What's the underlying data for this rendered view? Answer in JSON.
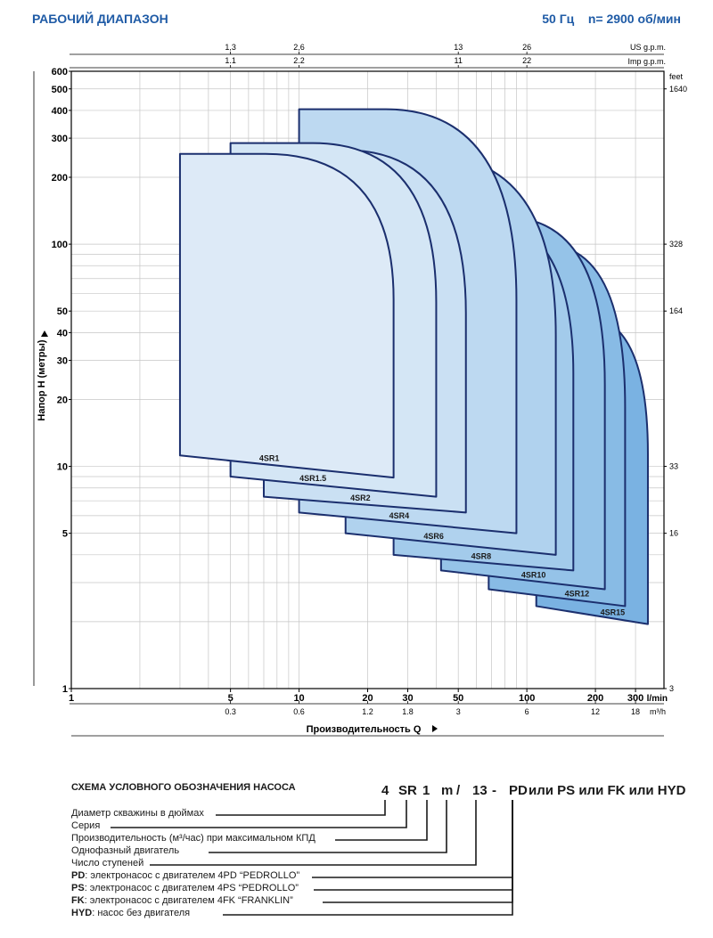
{
  "header": {
    "title": "РАБОЧИЙ ДИАПАЗОН",
    "frequency": "50 Гц",
    "speed": "n= 2900 об/мин"
  },
  "chart_data": {
    "type": "area",
    "x_scale": "log",
    "y_scale": "log",
    "xlim": [
      1,
      400
    ],
    "ylim": [
      1,
      600
    ],
    "xlabel": "Производительность Q",
    "ylabel": "Напор H (метры)",
    "x_unit": "l/min",
    "x2_unit": "m³/h",
    "x_ticks": [
      1,
      5,
      10,
      20,
      30,
      50,
      100,
      200,
      300
    ],
    "x_tick_labels": [
      "1",
      "5",
      "10",
      "20",
      "30",
      "50",
      "100",
      "200",
      "300"
    ],
    "x2_ticks": [
      5,
      10,
      20,
      30,
      50,
      100,
      200,
      300
    ],
    "x2_tick_labels": [
      "0.3",
      "0.6",
      "1.2",
      "1.8",
      "3",
      "6",
      "12",
      "18"
    ],
    "top_us_ticks": [
      5,
      10,
      50,
      100
    ],
    "top_us_labels": [
      "1,3",
      "2,6",
      "13",
      "26"
    ],
    "top_us_unit": "US g.p.m.",
    "top_imp_ticks": [
      5,
      10,
      50,
      100
    ],
    "top_imp_labels": [
      "1.1",
      "2.2",
      "11",
      "22"
    ],
    "top_imp_unit": "Imp g.p.m.",
    "y_ticks": [
      1,
      5,
      10,
      20,
      30,
      40,
      50,
      100,
      200,
      300,
      400,
      500,
      600
    ],
    "y_tick_labels": [
      "1",
      "5",
      "10",
      "20",
      "30",
      "40",
      "50",
      "100",
      "200",
      "300",
      "400",
      "500",
      "600"
    ],
    "right_ticks": [
      1,
      5,
      10,
      50,
      100,
      500
    ],
    "right_tick_labels": [
      "3",
      "16",
      "33",
      "164",
      "328",
      "1640"
    ],
    "right_unit": "feet",
    "series": [
      {
        "name": "4SR1",
        "qmin": 3,
        "qmax": 26,
        "hmax": 255,
        "hmin_l": 11.2,
        "hmin_r": 8.9,
        "color": "#ddeaf7"
      },
      {
        "name": "4SR1.5",
        "qmin": 5,
        "qmax": 40,
        "hmax": 285,
        "hmin_l": 9.0,
        "hmin_r": 7.3,
        "color": "#d4e6f5"
      },
      {
        "name": "4SR2",
        "qmin": 7,
        "qmax": 54,
        "hmax": 265,
        "hmin_l": 7.3,
        "hmin_r": 6.2,
        "color": "#cae0f3"
      },
      {
        "name": "4SR4",
        "qmin": 10,
        "qmax": 90,
        "hmax": 405,
        "hmin_l": 6.2,
        "hmin_r": 5.0,
        "color": "#bdd9f1"
      },
      {
        "name": "4SR6",
        "qmin": 16,
        "qmax": 134,
        "hmax": 250,
        "hmin_l": 5.0,
        "hmin_r": 4.0,
        "color": "#b0d2ee"
      },
      {
        "name": "4SR8",
        "qmin": 26,
        "qmax": 160,
        "hmax": 140,
        "hmin_l": 4.0,
        "hmin_r": 3.4,
        "color": "#a3cbeb"
      },
      {
        "name": "4SR10",
        "qmin": 42,
        "qmax": 220,
        "hmax": 132,
        "hmin_l": 3.4,
        "hmin_r": 2.8,
        "color": "#95c3e8"
      },
      {
        "name": "4SR12",
        "qmin": 68,
        "qmax": 270,
        "hmax": 100,
        "hmin_l": 2.8,
        "hmin_r": 2.35,
        "color": "#88bbe5"
      },
      {
        "name": "4SR15",
        "qmin": 110,
        "qmax": 340,
        "hmax": 48,
        "hmin_l": 2.35,
        "hmin_r": 1.95,
        "color": "#7ab2e2"
      }
    ],
    "series_label_q": [
      7.4,
      11.5,
      18.6,
      27.5,
      39,
      63,
      107,
      166,
      238
    ],
    "grid": true,
    "colors": {
      "outline": "#1b2f6e",
      "axis": "#000000",
      "grid": "#c6c6c6",
      "accent": "#1f5ba6"
    }
  },
  "schema": {
    "title": "СХЕМА УСЛОВНОГО ОБОЗНАЧЕНИЯ НАСОСА",
    "code_parts": [
      "4",
      "SR",
      "1",
      "m",
      "/",
      "13",
      "-",
      "PD"
    ],
    "code_tail": "или PS или FK или HYD",
    "legend": [
      {
        "bold": "",
        "text": "Диаметр скважины в дюймах"
      },
      {
        "bold": "",
        "text": "Серия"
      },
      {
        "bold": "",
        "text": "Производительность (м³/час) при максимальном КПД"
      },
      {
        "bold": "",
        "text": "Однофазный двигатель"
      },
      {
        "bold": "",
        "text": "Число ступеней"
      },
      {
        "bold": "PD",
        "text": ": электронасос с двигателем 4PD “PEDROLLO”"
      },
      {
        "bold": "PS",
        "text": ": электронасос с двигателем 4PS “PEDROLLO”"
      },
      {
        "bold": "FK",
        "text": ": электронасос с двигателем 4FK “FRANKLIN”"
      },
      {
        "bold": "HYD",
        "text": ": насос без двигателя"
      }
    ]
  }
}
